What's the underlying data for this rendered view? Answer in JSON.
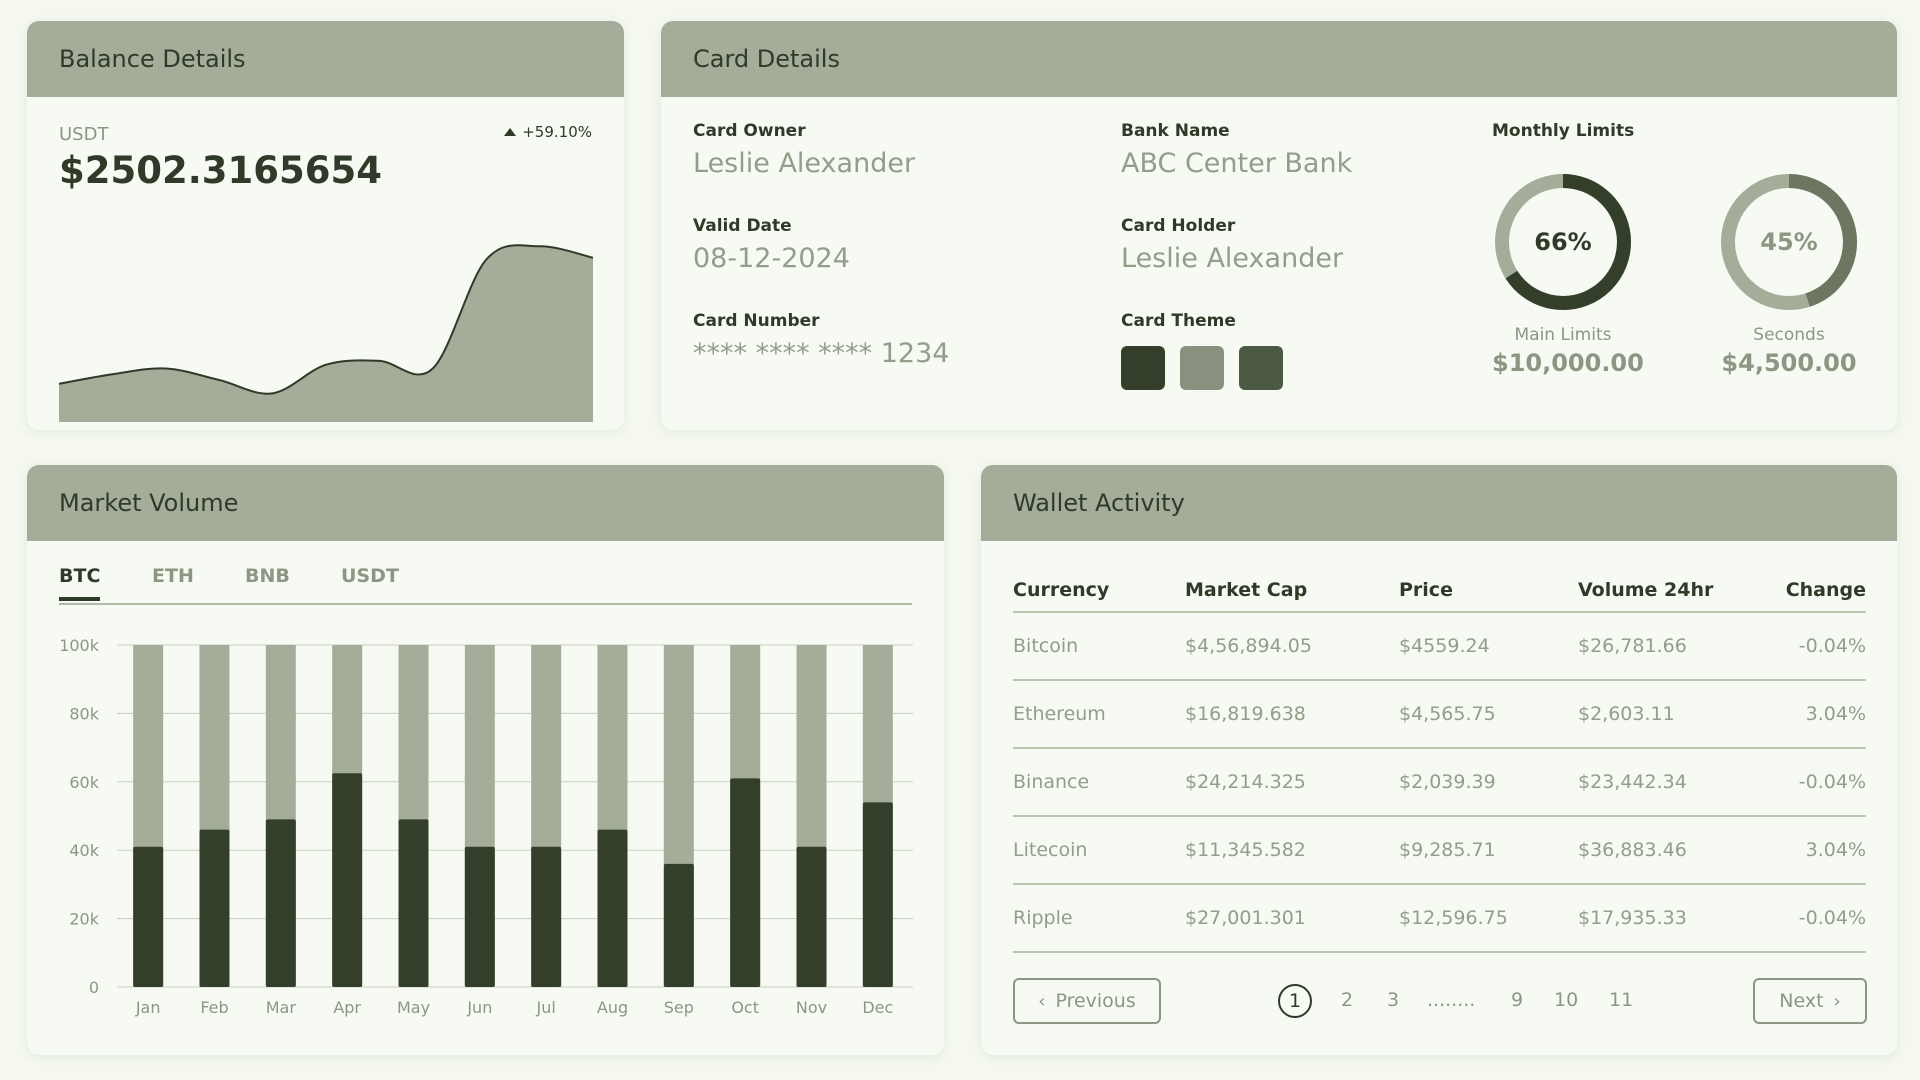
{
  "balance": {
    "title": "Balance Details",
    "currency": "USDT",
    "change": "+59.10%",
    "amount": "$2502.3165654"
  },
  "card": {
    "title": "Card Details",
    "owner_label": "Card Owner",
    "owner": "Leslie Alexander",
    "bank_label": "Bank Name",
    "bank": "ABC Center Bank",
    "valid_label": "Valid Date",
    "valid": "08-12-2024",
    "holder_label": "Card Holder",
    "holder": "Leslie Alexander",
    "number_label": "Card Number",
    "number": "**** **** **** 1234",
    "theme_label": "Card Theme",
    "theme_colors": [
      "#333f2b",
      "#8a9080",
      "#4d5a43"
    ],
    "limits_label": "Monthly Limits",
    "limits": [
      {
        "percent": "66%",
        "caption": "Main Limits",
        "amount": "$10,000.00",
        "fraction": 0.66,
        "color": "#333f2b",
        "text_color": "#2f3a28"
      },
      {
        "percent": "45%",
        "caption": "Seconds",
        "amount": "$4,500.00",
        "fraction": 0.45,
        "color": "#6c7661",
        "text_color": "#8d9683"
      }
    ]
  },
  "market": {
    "title": "Market Volume",
    "tabs": [
      "BTC",
      "ETH",
      "BNB",
      "USDT"
    ],
    "active_tab": "BTC"
  },
  "wallet": {
    "title": "Wallet Activity",
    "columns": [
      "Currency",
      "Market Cap",
      "Price",
      "Volume 24hr",
      "Change"
    ],
    "rows": [
      [
        "Bitcoin",
        "$4,56,894.05",
        "$4559.24",
        "$26,781.66",
        "-0.04%"
      ],
      [
        "Ethereum",
        "$16,819.638",
        "$4,565.75",
        "$2,603.11",
        "3.04%"
      ],
      [
        "Binance",
        "$24,214.325",
        "$2,039.39",
        "$23,442.34",
        "-0.04%"
      ],
      [
        "Litecoin",
        "$11,345.582",
        "$9,285.71",
        "$36,883.46",
        "3.04%"
      ],
      [
        "Ripple",
        "$27,001.301",
        "$12,596.75",
        "$17,935.33",
        "-0.04%"
      ]
    ],
    "pagination": {
      "previous": "Previous",
      "next": "Next",
      "pages": [
        "1",
        "2",
        "3",
        "........",
        "9",
        "10",
        "11"
      ],
      "current": "1"
    }
  },
  "chart_data": [
    {
      "type": "area",
      "title": "",
      "x": [
        0,
        1,
        2,
        3,
        4,
        5,
        6,
        7,
        8,
        9,
        10
      ],
      "values": [
        20,
        25,
        28,
        22,
        15,
        30,
        32,
        28,
        85,
        92,
        86
      ]
    },
    {
      "type": "bar",
      "title": "",
      "categories": [
        "Jan",
        "Feb",
        "Mar",
        "Apr",
        "May",
        "Jun",
        "Jul",
        "Aug",
        "Sep",
        "Oct",
        "Nov",
        "Dec"
      ],
      "series": [
        {
          "values": [
            41000,
            46000,
            49000,
            62500,
            49000,
            41000,
            41000,
            46000,
            36000,
            61000,
            41000,
            54000
          ]
        },
        {
          "values": [
            100000,
            100000,
            100000,
            100000,
            100000,
            100000,
            100000,
            100000,
            100000,
            100000,
            100000,
            100000
          ]
        }
      ],
      "yticks": [
        "0",
        "20k",
        "40k",
        "60k",
        "80k",
        "100k"
      ],
      "ylim": [
        0,
        100000
      ],
      "colors": [
        "#333f2b",
        "#a3ad99"
      ],
      "grid": true
    }
  ]
}
